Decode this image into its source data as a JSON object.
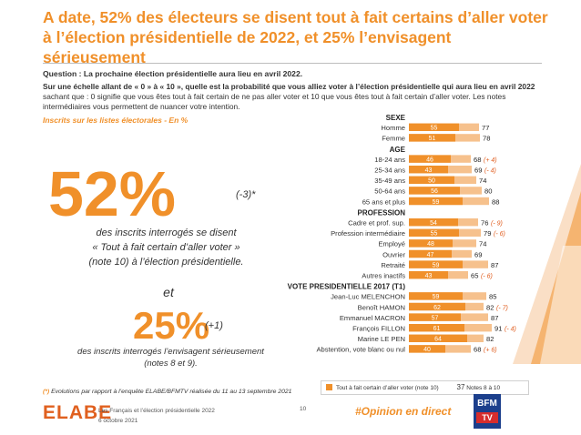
{
  "slide": {
    "title": "A date, 52% des électeurs se disent tout à fait certains d’aller voter à l’élection présidentielle de 2022, et 25% l’envisagent sérieusement",
    "question_label": "Question :",
    "question_text": "La prochaine élection présidentielle aura lieu en avril 2022.",
    "scale_bold": "Sur une échelle allant de « 0 » à « 10 », quelle est la probabilité que vous alliez voter à l’élection présidentielle qui aura lieu en avril 2022",
    "scale_rest": " sachant que : 0 signifie que vous êtes tout à fait certain de ne pas aller voter et 10 que vous êtes tout à fait certain d’aller voter. Les notes intermédiaires vous permettent de nuancer votre intention.",
    "subnote": "Inscrits sur les listes électorales - En %",
    "big1_value": "52%",
    "big1_delta": "(-3)*",
    "big1_desc_l1": "des inscrits interrogés se disent",
    "big1_desc_l2": "« Tout à fait certain d’aller voter »",
    "big1_desc_l3": "(note 10) à l’élection présidentielle.",
    "et": "et",
    "big2_value": "25%",
    "big2_delta": "(+1)",
    "big2_desc_l1": "des inscrits interrogés l’envisagent sérieusement",
    "big2_desc_l2": "(notes 8 et 9).",
    "footnote_star": "(*)",
    "footnote_text": " Evolutions par rapport à l’enquête ELABE/BFMTV réalisée du 11 au 13 septembre 2021",
    "logo": "ELABE",
    "footer_line1": "Les Français et l’élection présidentielle 2022",
    "footer_line2": "6 octobre 2021",
    "page_number": "10",
    "hashtag": "#Opinion en direct",
    "bfm_top": "BFM",
    "bfm_bottom": "TV",
    "legend_label": "Tout à fait certain d’aller voter (note 10)",
    "legend_value": "37",
    "legend_notes": "Notes 8 à 10"
  },
  "colors": {
    "accent": "#f0902a",
    "bar_inner": "#f0902a",
    "bar_outer": "#f6c18d",
    "evo": "#e05a1a"
  },
  "chart_data": {
    "type": "bar",
    "orientation": "horizontal-stacked",
    "series": [
      {
        "name": "Tout à fait certain d’aller voter (note 10)",
        "key": "note10"
      },
      {
        "name": "Notes 8 à 10",
        "key": "notes8_10"
      }
    ],
    "groups": [
      {
        "header": "SEXE",
        "rows": [
          {
            "label": "Homme",
            "note10": 55,
            "notes8_10": 77,
            "evo": ""
          },
          {
            "label": "Femme",
            "note10": 51,
            "notes8_10": 78,
            "evo": ""
          }
        ]
      },
      {
        "header": "AGE",
        "rows": [
          {
            "label": "18-24 ans",
            "note10": 46,
            "notes8_10": 68,
            "evo": "(+ 4)"
          },
          {
            "label": "25-34 ans",
            "note10": 43,
            "notes8_10": 69,
            "evo": "(- 4)"
          },
          {
            "label": "35-49 ans",
            "note10": 50,
            "notes8_10": 74,
            "evo": ""
          },
          {
            "label": "50-64 ans",
            "note10": 56,
            "notes8_10": 80,
            "evo": ""
          },
          {
            "label": "65 ans et plus",
            "note10": 59,
            "notes8_10": 88,
            "evo": ""
          }
        ]
      },
      {
        "header": "PROFESSION",
        "rows": [
          {
            "label": "Cadre et prof. sup.",
            "note10": 54,
            "notes8_10": 76,
            "evo": "(- 9)"
          },
          {
            "label": "Profession intermédiaire",
            "note10": 55,
            "notes8_10": 79,
            "evo": "(- 6)"
          },
          {
            "label": "Employé",
            "note10": 48,
            "notes8_10": 74,
            "evo": ""
          },
          {
            "label": "Ouvrier",
            "note10": 47,
            "notes8_10": 69,
            "evo": ""
          },
          {
            "label": "Retraité",
            "note10": 59,
            "notes8_10": 87,
            "evo": ""
          },
          {
            "label": "Autres inactifs",
            "note10": 43,
            "notes8_10": 65,
            "evo": "(- 6)"
          }
        ]
      },
      {
        "header": "VOTE PRESIDENTIELLE 2017 (T1)",
        "rows": [
          {
            "label": "Jean-Luc MELENCHON",
            "note10": 59,
            "notes8_10": 85,
            "evo": ""
          },
          {
            "label": "Benoît HAMON",
            "note10": 62,
            "notes8_10": 82,
            "evo": "(- 7)"
          },
          {
            "label": "Emmanuel MACRON",
            "note10": 57,
            "notes8_10": 87,
            "evo": ""
          },
          {
            "label": "François FILLON",
            "note10": 61,
            "notes8_10": 91,
            "evo": "(- 4)"
          },
          {
            "label": "Marine LE PEN",
            "note10": 64,
            "notes8_10": 82,
            "evo": ""
          },
          {
            "label": "Abstention, vote blanc ou nul",
            "note10": 40,
            "notes8_10": 68,
            "evo": "(+ 6)"
          }
        ]
      }
    ],
    "xlim": [
      0,
      100
    ]
  }
}
